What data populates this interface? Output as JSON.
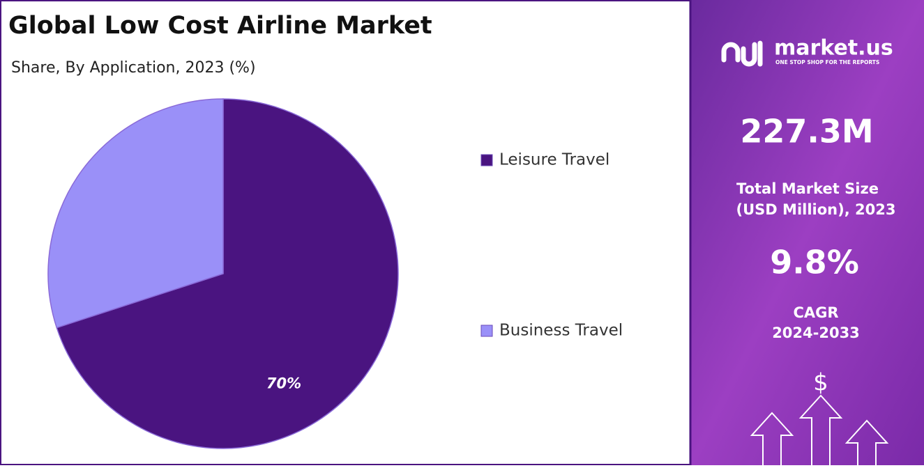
{
  "chart_data": {
    "type": "pie",
    "title": "Global Low Cost Airline Market",
    "subtitle": "Share, By Application, 2023 (%)",
    "categories": [
      "Leisure Travel",
      "Business Travel"
    ],
    "values": [
      70,
      30
    ],
    "value_labels": [
      "70%",
      null
    ],
    "colors": [
      "#4a1480",
      "#9a90f8"
    ],
    "legend": "right"
  },
  "side_panel": {
    "brand": "market.us",
    "tagline": "ONE STOP SHOP FOR THE REPORTS",
    "market_size": "227.3M",
    "market_size_label": [
      "Total Market Size",
      "(USD Million), 2023"
    ],
    "cagr": "9.8%",
    "cagr_label": [
      "CAGR",
      "2024-2033"
    ],
    "currency_icon": "$"
  }
}
